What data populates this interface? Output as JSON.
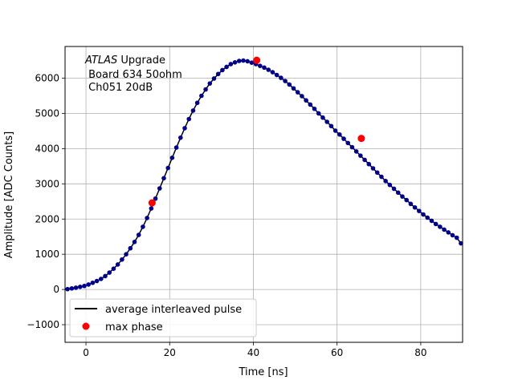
{
  "chart_data": {
    "type": "scatter",
    "title": "",
    "annotation": {
      "italic": "ATLAS",
      "line1_rest": " Upgrade",
      "line2": " Board 634 50ohm",
      "line3": " Ch051 20dB"
    },
    "xlabel": "Time [ns]",
    "ylabel": "Amplitude [ADC Counts]",
    "xlim": [
      -5,
      90
    ],
    "ylim": [
      -1500,
      6900
    ],
    "xticks": [
      0,
      20,
      40,
      60,
      80
    ],
    "yticks": [
      -1000,
      0,
      1000,
      2000,
      3000,
      4000,
      5000,
      6000
    ],
    "grid": true,
    "legend": {
      "placement": "lower-left",
      "entries": [
        {
          "label": "average interleaved pulse",
          "color": "#000000",
          "marker": "line"
        },
        {
          "label": "max phase",
          "color": "#ff0000",
          "marker": "circle"
        }
      ]
    },
    "series": [
      {
        "color": "#00008b",
        "marker": "circle",
        "x": [
          -4.4,
          -3.4,
          -2.4,
          -1.4,
          -0.4,
          0.6,
          1.6,
          2.6,
          3.6,
          4.6,
          5.6,
          6.6,
          7.6,
          8.6,
          9.6,
          10.6,
          11.6,
          12.6,
          13.6,
          14.6,
          15.6,
          16.6,
          17.6,
          18.6,
          19.6,
          20.6,
          21.6,
          22.6,
          23.6,
          24.6,
          25.6,
          26.6,
          27.6,
          28.6,
          29.6,
          30.6,
          31.6,
          32.6,
          33.6,
          34.6,
          35.6,
          36.6,
          37.6,
          38.6,
          39.6,
          40.6,
          41.6,
          42.6,
          43.6,
          44.6,
          45.6,
          46.6,
          47.6,
          48.6,
          49.6,
          50.6,
          51.6,
          52.6,
          53.6,
          54.6,
          55.6,
          56.6,
          57.6,
          58.6,
          59.6,
          60.6,
          61.6,
          62.6,
          63.6,
          64.6,
          65.6,
          66.6,
          67.6,
          68.6,
          69.6,
          70.6,
          71.6,
          72.6,
          73.6,
          74.6,
          75.6,
          76.6,
          77.6,
          78.6,
          79.6,
          80.6,
          81.6,
          82.6,
          83.6,
          84.6,
          85.6,
          86.6,
          87.6,
          88.6,
          89.6
        ],
        "y": [
          10,
          30,
          50,
          75,
          100,
          140,
          190,
          240,
          300,
          380,
          480,
          590,
          710,
          850,
          1000,
          1170,
          1350,
          1550,
          1780,
          2030,
          2300,
          2580,
          2870,
          3160,
          3450,
          3740,
          4030,
          4310,
          4580,
          4840,
          5080,
          5300,
          5500,
          5680,
          5850,
          5990,
          6120,
          6230,
          6320,
          6400,
          6450,
          6490,
          6500,
          6480,
          6440,
          6400,
          6350,
          6300,
          6240,
          6170,
          6090,
          6010,
          5920,
          5820,
          5710,
          5600,
          5490,
          5370,
          5250,
          5130,
          5000,
          4880,
          4760,
          4640,
          4510,
          4400,
          4280,
          4160,
          4040,
          3920,
          3800,
          3680,
          3560,
          3440,
          3320,
          3200,
          3080,
          2970,
          2860,
          2750,
          2640,
          2540,
          2430,
          2330,
          2230,
          2130,
          2040,
          1950,
          1860,
          1780,
          1700,
          1620,
          1540,
          1470,
          1310
        ]
      },
      {
        "name": "max phase",
        "color": "#ff0000",
        "marker": "circle",
        "x": [
          15.8,
          40.8,
          65.8
        ],
        "y": [
          2460,
          6510,
          4290
        ]
      }
    ]
  }
}
